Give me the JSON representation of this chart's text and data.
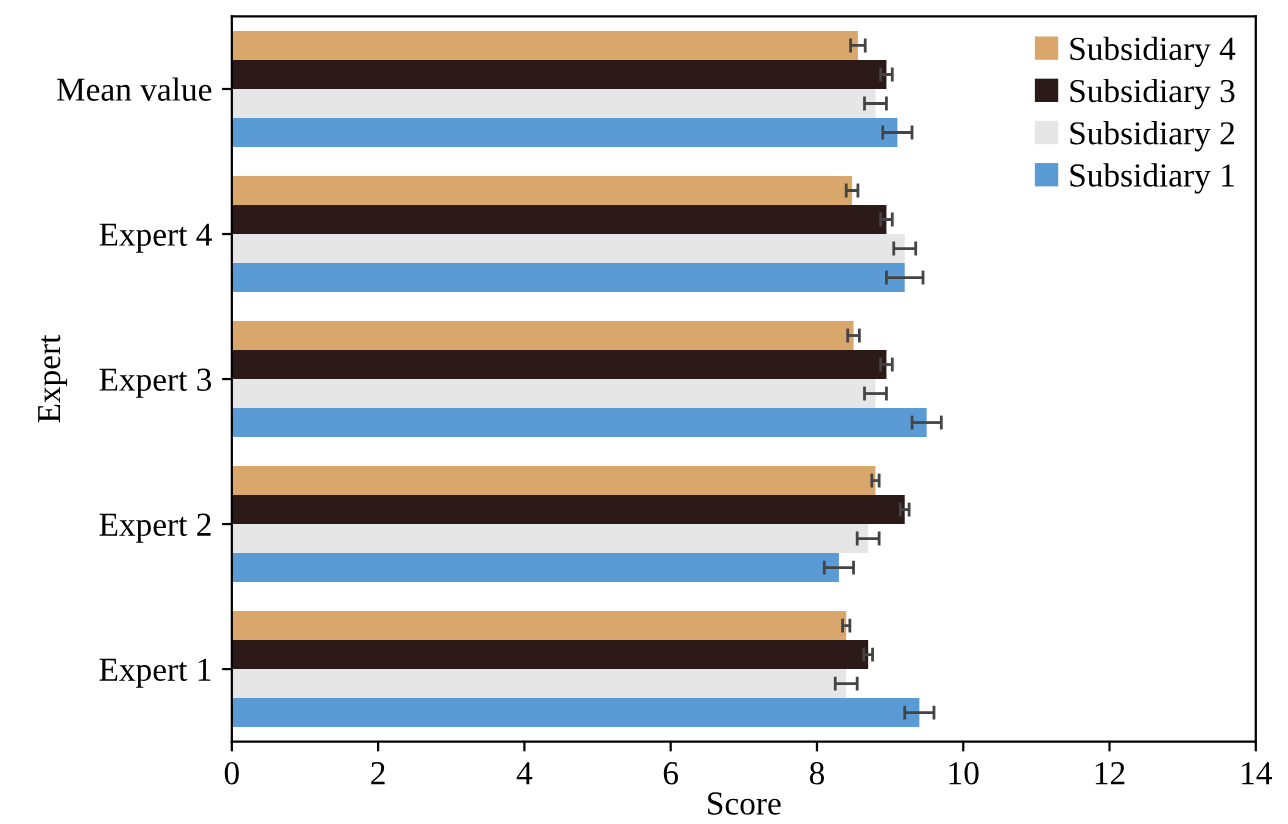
{
  "chart_data": {
    "type": "bar",
    "orientation": "horizontal",
    "xlabel": "Score",
    "ylabel": "Expert",
    "categories": [
      "Mean value",
      "Expert 4",
      "Expert 3",
      "Expert 2",
      "Expert 1"
    ],
    "series": [
      {
        "name": "Subsidiary 4",
        "color": "#d9a66b",
        "values": [
          8.56,
          8.48,
          8.5,
          8.8,
          8.4
        ],
        "errors": [
          0.1,
          0.08,
          0.08,
          0.05,
          0.05
        ]
      },
      {
        "name": "Subsidiary 3",
        "color": "#2b1a17",
        "values": [
          8.95,
          8.95,
          8.95,
          9.2,
          8.7
        ],
        "errors": [
          0.08,
          0.08,
          0.08,
          0.06,
          0.06
        ]
      },
      {
        "name": "Subsidiary 2",
        "color": "#e6e6e6",
        "values": [
          8.8,
          9.2,
          8.8,
          8.7,
          8.4
        ],
        "errors": [
          0.15,
          0.15,
          0.15,
          0.15,
          0.15
        ]
      },
      {
        "name": "Subsidiary 1",
        "color": "#5b9bd5",
        "values": [
          9.1,
          9.2,
          9.5,
          8.3,
          9.4
        ],
        "errors": [
          0.2,
          0.25,
          0.2,
          0.2,
          0.2
        ]
      }
    ],
    "xlim": [
      0,
      14
    ],
    "xticks": [
      0,
      2,
      4,
      6,
      8,
      10,
      12,
      14
    ],
    "grid": false,
    "legend": "top right"
  }
}
